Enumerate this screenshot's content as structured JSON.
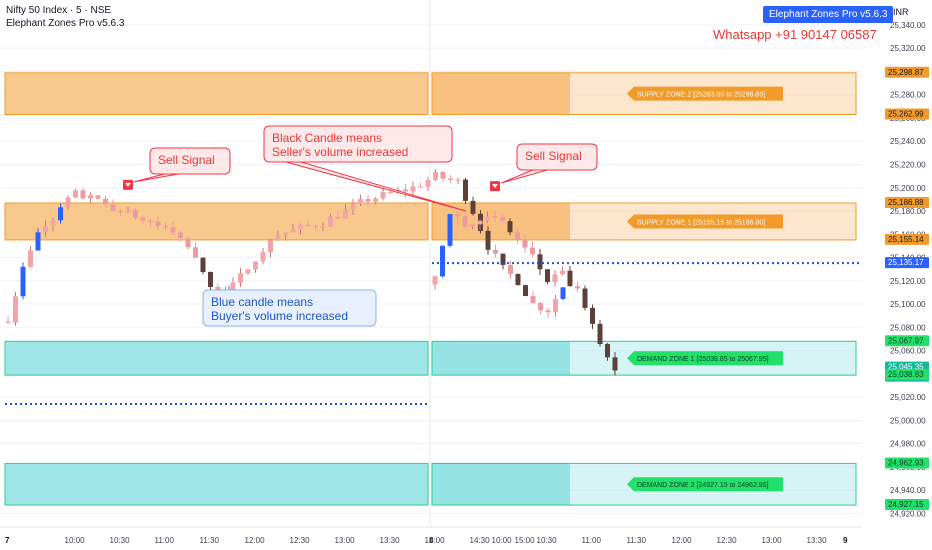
{
  "header": {
    "symbol_line": "Nifty 50 Index · 5 · NSE",
    "indicator_line": "Elephant Zones Pro v5.6.3",
    "badge": "Elephant Zones Pro v5.6.3",
    "whatsapp": "Whatsapp +91 90147 06587",
    "currency": "INR"
  },
  "colors": {
    "supply_fill": "#f7b567",
    "supply_border": "#f29b2b",
    "demand_fill": "#7fdde0",
    "demand_border": "#2ecf8e",
    "bull_candle": "#f4a3a8",
    "bear_candle": "#5d4037",
    "blue_candle": "#2962ff",
    "signal_red": "#f23645",
    "dotted_line": "#1e4fd8",
    "callout_red_bg": "#fde9ea",
    "callout_blue_bg": "#e7f0fc",
    "label_green": "#22e06a"
  },
  "chart_data": {
    "type": "candlestick",
    "title": "Nifty 50 Index · 5 · NSE",
    "y_axis": {
      "ylim": [
        24910,
        25352
      ],
      "ticks": [
        24920,
        24940,
        24960,
        24980,
        25000,
        25020,
        25040,
        25060,
        25080,
        25100,
        25120,
        25140,
        25160,
        25180,
        25200,
        25220,
        25240,
        25260,
        25280,
        25300,
        25320,
        25340
      ]
    },
    "x_axis": {
      "day_labels": [
        "7",
        "8",
        "9"
      ],
      "session_times": [
        "10:00",
        "10:30",
        "11:00",
        "11:30",
        "12:00",
        "12:30",
        "13:00",
        "13:30",
        "14:00",
        "14:30",
        "15:00"
      ]
    },
    "days": [
      {
        "label": "7",
        "path_times": [
          "09:15",
          "09:25",
          "09:35",
          "09:45",
          "10:00",
          "10:20",
          "10:40",
          "11:00",
          "11:15",
          "11:25",
          "11:35",
          "11:45",
          "12:00",
          "12:15",
          "12:30",
          "12:45",
          "13:00",
          "13:15",
          "13:30",
          "13:45",
          "14:00",
          "14:15",
          "14:25",
          "14:35",
          "14:45",
          "14:55",
          "15:05",
          "15:15",
          "15:25"
        ],
        "path_values": [
          25088,
          25130,
          25160,
          25175,
          25195,
          25185,
          25175,
          25165,
          25150,
          25125,
          25110,
          25115,
          25140,
          25160,
          25165,
          25170,
          25180,
          25190,
          25195,
          25200,
          25210,
          25205,
          25180,
          25150,
          25130,
          25120,
          25100,
          25095,
          25115
        ]
      },
      {
        "label": "8",
        "path_times": [
          "09:15",
          "09:25",
          "09:35",
          "09:45",
          "10:00",
          "10:10",
          "10:20",
          "10:30",
          "10:40",
          "10:50",
          "11:00",
          "11:10",
          "11:15"
        ],
        "path_values": [
          25120,
          25180,
          25170,
          25175,
          25170,
          25155,
          25140,
          25120,
          25125,
          25110,
          25080,
          25055,
          25045
        ]
      }
    ],
    "zones": [
      {
        "label": "SUPPLY ZONE 2 [25263.00 to 25298.85]",
        "kind": "supply",
        "low": 25263.0,
        "high": 25298.85
      },
      {
        "label": "SUPPLY ZONE 1 [25155.15 to 25186.90]",
        "kind": "supply",
        "low": 25155.15,
        "high": 25186.9
      },
      {
        "label": "DEMAND ZONE 1 [25038.85 to 25067.95]",
        "kind": "demand",
        "low": 25038.85,
        "high": 25067.95
      },
      {
        "label": "DEMAND ZONE 2 [24927.15 to 24962.95]",
        "kind": "demand",
        "low": 24927.15,
        "high": 24962.95
      }
    ],
    "dotted_lines": [
      {
        "day": "7",
        "value": 25014
      },
      {
        "day": "8",
        "value": 25135.17
      }
    ],
    "price_labels": [
      {
        "text": "25,298.87",
        "value": 25298.87,
        "style": "supply"
      },
      {
        "text": "25,262.99",
        "value": 25262.99,
        "style": "supply"
      },
      {
        "text": "25,186.88",
        "value": 25186.88,
        "style": "supply"
      },
      {
        "text": "25,155.14",
        "value": 25155.14,
        "style": "supply"
      },
      {
        "text": "25,135.17",
        "value": 25135.17,
        "style": "blue"
      },
      {
        "text": "25,067.97",
        "value": 25067.97,
        "style": "green"
      },
      {
        "text": "25,045.35",
        "sub": "03:10",
        "value": 25045.35,
        "style": "teal"
      },
      {
        "text": "25,038.83",
        "value": 25038.83,
        "style": "green"
      },
      {
        "text": "24,962.93",
        "value": 24962.93,
        "style": "green"
      },
      {
        "text": "24,927.15",
        "value": 24927.15,
        "style": "green"
      }
    ],
    "signals": [
      {
        "day": "7",
        "time": "10:35",
        "price": 25193,
        "label": "Sell Signal"
      },
      {
        "day": "8",
        "time": "09:55",
        "price": 25192,
        "label": "Sell Signal"
      }
    ],
    "callouts": [
      {
        "lines": [
          "Black Candle means",
          "Seller's volume increased"
        ],
        "style": "red",
        "day": "7",
        "time": "14:15"
      },
      {
        "lines": [
          "Blue candle means",
          "Buyer's volume increased"
        ],
        "style": "blue",
        "day": "7",
        "time": "11:45"
      }
    ]
  }
}
